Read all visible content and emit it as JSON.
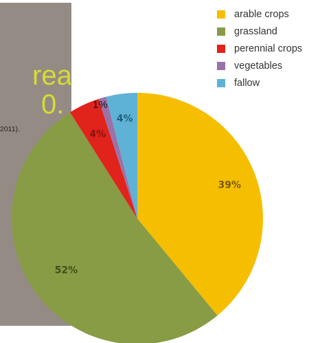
{
  "panel": {
    "title_fragment_1": "rea",
    "title_fragment_2": "0.",
    "source_fragment": "2011)."
  },
  "chart_data": {
    "type": "pie",
    "slices": [
      {
        "name": "arable crops",
        "value": 39,
        "label": "39%",
        "color": "#f6be00",
        "label_color": "#7a5a00"
      },
      {
        "name": "grassland",
        "value": 52,
        "label": "52%",
        "color": "#879c44",
        "label_color": "#3e5018"
      },
      {
        "name": "perennial crops",
        "value": 4,
        "label": "4%",
        "color": "#e0231b",
        "label_color": "#8a1410"
      },
      {
        "name": "vegetables",
        "value": 1,
        "label": "1%",
        "color": "#9a72a8",
        "label_color": "#111111"
      },
      {
        "name": "fallow",
        "value": 4,
        "label": "4%",
        "color": "#5eb2d6",
        "label_color": "#1f5e7a"
      }
    ],
    "legend_placement": "top-right"
  }
}
